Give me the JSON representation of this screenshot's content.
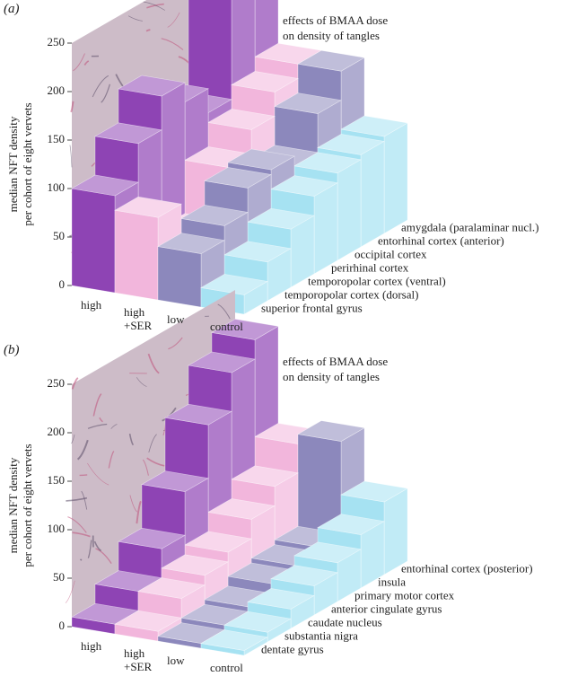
{
  "chart_data": [
    {
      "type": "bar3d",
      "panel": "(a)",
      "ylabel": [
        "median NFT density",
        "per cohort of eight vervets"
      ],
      "annotation": "effects of BMAA dose on density of tangles",
      "categories": [
        "superior frontal gyrus",
        "temporopolar cortex (dorsal)",
        "temporopolar cortex (ventral)",
        "perirhinal cortex",
        "occipital cortex",
        "entorhinal cortex (anterior)",
        "amygdala (paralaminar nucl.)"
      ],
      "series": [
        {
          "name": "high",
          "color": "#8e44b4",
          "values": [
            100,
            140,
            175,
            155,
            130,
            250,
            240
          ]
        },
        {
          "name": "high +SER",
          "color": "#f2b6dc",
          "values": [
            85,
            55,
            40,
            95,
            120,
            145,
            160
          ]
        },
        {
          "name": "low",
          "color": "#8c88bc",
          "values": [
            55,
            70,
            95,
            100,
            90,
            130,
            160
          ]
        },
        {
          "name": "control",
          "color": "#a6e2f2",
          "values": [
            20,
            40,
            60,
            80,
            90,
            95,
            100
          ]
        }
      ],
      "ylim": [
        0,
        250
      ],
      "yticks": [
        0,
        50,
        100,
        150,
        200,
        250
      ]
    },
    {
      "type": "bar3d",
      "panel": "(b)",
      "ylabel": [
        "median NFT density",
        "per cohort of eight vervets"
      ],
      "annotation": "effects of BMAA dose on density of tangles",
      "categories": [
        "dentate gyrus",
        "substantia nigra",
        "caudate nucleus",
        "anterior cingulate gyrus",
        "primary motor cortex",
        "insula",
        "entorhinal cortex (posterior)"
      ],
      "series": [
        {
          "name": "high",
          "color": "#8e44b4",
          "values": [
            10,
            30,
            60,
            105,
            160,
            200,
            220
          ]
        },
        {
          "name": "high +SER",
          "color": "#f2b6dc",
          "values": [
            10,
            30,
            40,
            50,
            70,
            90,
            120
          ]
        },
        {
          "name": "low",
          "color": "#8c88bc",
          "values": [
            5,
            10,
            15,
            25,
            30,
            35,
            130
          ]
        },
        {
          "name": "control",
          "color": "#a6e2f2",
          "values": [
            5,
            10,
            20,
            30,
            40,
            55,
            75
          ]
        }
      ],
      "ylim": [
        0,
        250
      ],
      "yticks": [
        0,
        50,
        100,
        150,
        200,
        250
      ]
    }
  ]
}
